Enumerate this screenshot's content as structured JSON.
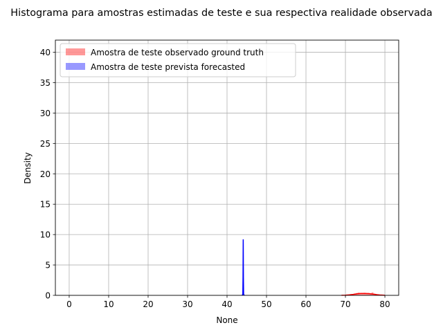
{
  "chart_data": {
    "type": "histogram",
    "title": "Histograma para amostras estimadas de teste e sua respectiva  realidade observada",
    "xlabel": "None",
    "ylabel": "Density",
    "xlim": [
      -3.5,
      83.5
    ],
    "ylim": [
      0,
      42
    ],
    "xticks": [
      0,
      10,
      20,
      30,
      40,
      50,
      60,
      70,
      80
    ],
    "yticks": [
      0,
      5,
      10,
      15,
      20,
      25,
      30,
      35,
      40
    ],
    "grid": true,
    "legend_position": "upper-left",
    "series": [
      {
        "name": "Amostra de teste observado ground truth",
        "color": "#ff0000",
        "alpha": 0.4,
        "bins": [
          {
            "x0": 69.6,
            "x1": 70.1,
            "density": 0.05
          },
          {
            "x0": 70.1,
            "x1": 70.6,
            "density": 0.08
          },
          {
            "x0": 70.6,
            "x1": 71.1,
            "density": 0.12
          },
          {
            "x0": 71.1,
            "x1": 71.6,
            "density": 0.18
          },
          {
            "x0": 71.6,
            "x1": 72.1,
            "density": 0.22
          },
          {
            "x0": 72.1,
            "x1": 72.6,
            "density": 0.3
          },
          {
            "x0": 72.6,
            "x1": 73.1,
            "density": 0.38
          },
          {
            "x0": 73.1,
            "x1": 73.6,
            "density": 0.45
          },
          {
            "x0": 73.6,
            "x1": 74.1,
            "density": 0.4
          },
          {
            "x0": 74.1,
            "x1": 74.6,
            "density": 0.35
          },
          {
            "x0": 74.6,
            "x1": 75.1,
            "density": 0.42
          },
          {
            "x0": 75.1,
            "x1": 75.6,
            "density": 0.3
          },
          {
            "x0": 75.6,
            "x1": 76.1,
            "density": 0.38
          },
          {
            "x0": 76.1,
            "x1": 76.6,
            "density": 0.32
          },
          {
            "x0": 76.6,
            "x1": 77.1,
            "density": 0.48
          },
          {
            "x0": 77.1,
            "x1": 77.6,
            "density": 0.28
          },
          {
            "x0": 77.6,
            "x1": 78.1,
            "density": 0.18
          },
          {
            "x0": 78.1,
            "x1": 78.6,
            "density": 0.12
          },
          {
            "x0": 78.6,
            "x1": 79.1,
            "density": 0.08
          },
          {
            "x0": 79.1,
            "x1": 80.0,
            "density": 0.04
          }
        ],
        "kde_x": [
          69,
          70,
          71,
          72,
          73,
          74,
          75,
          76,
          77,
          78,
          79,
          80
        ],
        "kde_y": [
          0.01,
          0.03,
          0.08,
          0.16,
          0.26,
          0.32,
          0.32,
          0.28,
          0.2,
          0.11,
          0.05,
          0.01
        ]
      },
      {
        "name": "Amostra de teste prevista forecasted",
        "color": "#0000ff",
        "alpha": 0.4,
        "bins": [
          {
            "x0": 44.05,
            "x1": 44.15,
            "density": 9.2
          }
        ],
        "kde_x": [
          43.85,
          44.0,
          44.05,
          44.1,
          44.15,
          44.2,
          44.35
        ],
        "kde_y": [
          0,
          0.2,
          3.0,
          9.2,
          3.0,
          0.2,
          0
        ]
      }
    ]
  }
}
